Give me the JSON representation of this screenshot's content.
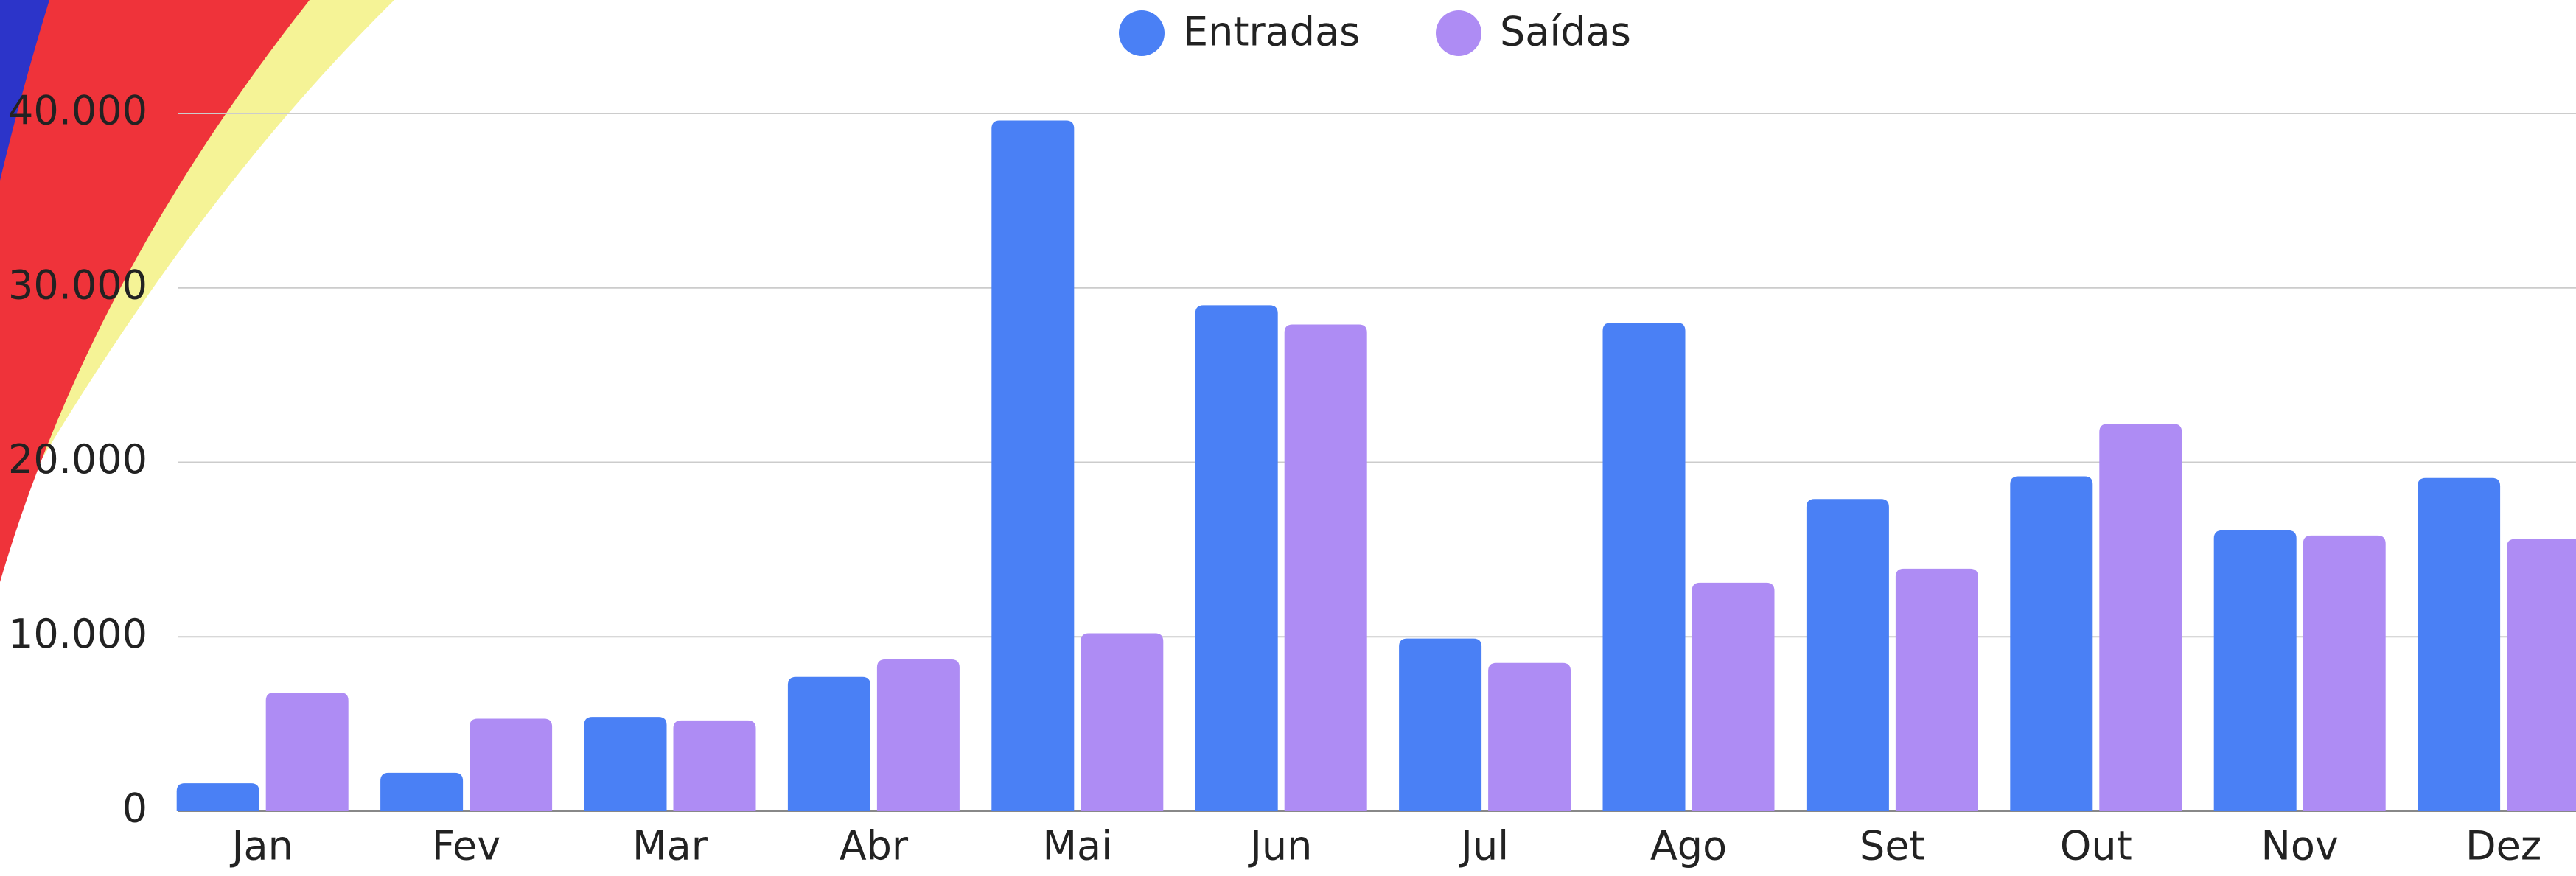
{
  "chart_data": {
    "type": "bar",
    "categories": [
      "Jan",
      "Fev",
      "Mar",
      "Abr",
      "Mai",
      "Jun",
      "Jul",
      "Ago",
      "Set",
      "Out",
      "Nov",
      "Dez"
    ],
    "series": [
      {
        "name": "Entradas",
        "color": "#4a80f5",
        "values": [
          1600,
          2200,
          5400,
          7700,
          39600,
          29000,
          9900,
          28000,
          17900,
          19200,
          16100,
          19100
        ]
      },
      {
        "name": "Saídas",
        "color": "#ae8cf4",
        "values": [
          6800,
          5300,
          5200,
          8700,
          10200,
          27900,
          8500,
          13100,
          13900,
          22200,
          15800,
          15600
        ]
      }
    ],
    "ylim": [
      0,
      40000
    ],
    "yticks": [
      0,
      {
        "value": 10000,
        "label": "10.000"
      },
      {
        "value": 20000,
        "label": "20.000"
      },
      {
        "value": 30000,
        "label": "30.000"
      },
      {
        "value": 40000,
        "label": "40.000"
      }
    ],
    "grid": true,
    "legend": "top"
  }
}
